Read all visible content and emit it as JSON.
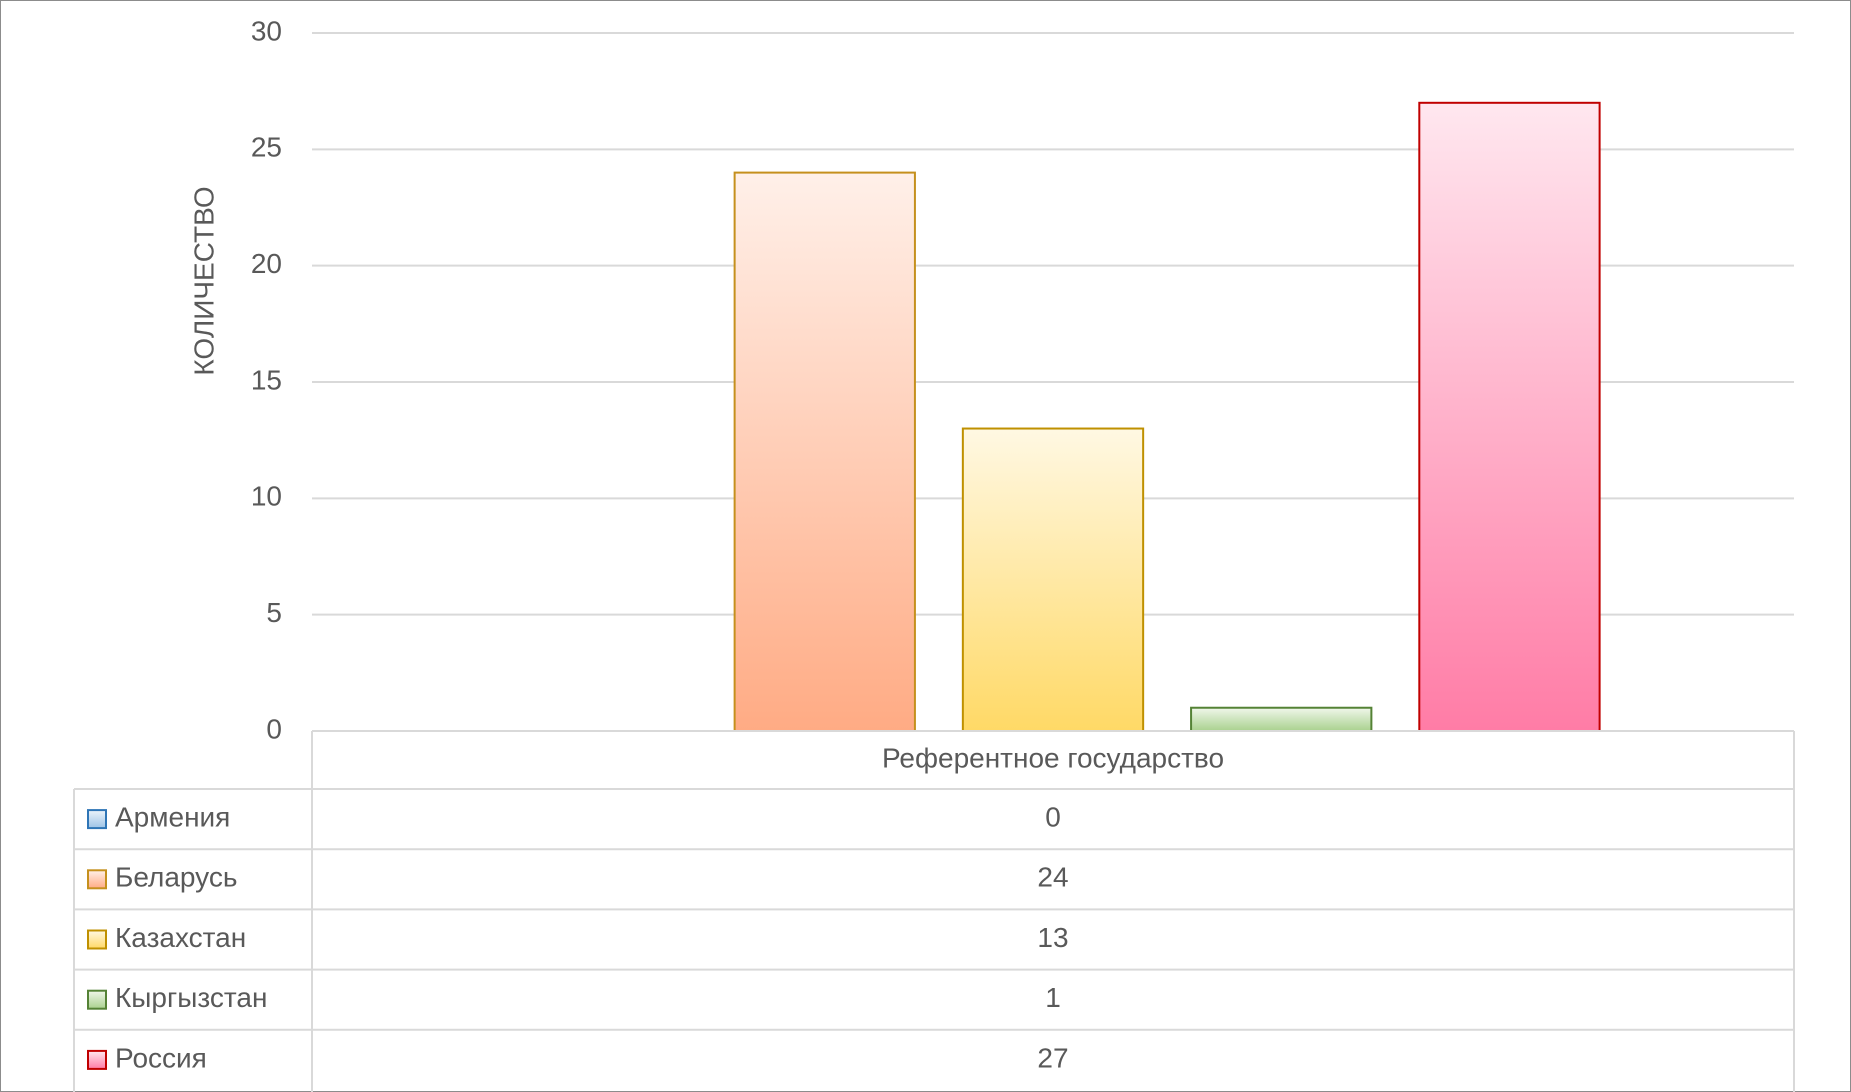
{
  "chart_data": {
    "type": "bar",
    "y_label": "КОЛИЧЕСТВО",
    "categories": [
      "Референтное государство"
    ],
    "series": [
      {
        "name": "Армения",
        "color": "#9dc3e6",
        "border_color": "#2e75b6",
        "values": [
          0
        ]
      },
      {
        "name": "Беларусь",
        "color": "#ffab84",
        "border_color": "#c5901d",
        "values": [
          24
        ]
      },
      {
        "name": "Казахстан",
        "color": "#ffd966",
        "border_color": "#bf9000",
        "values": [
          13
        ]
      },
      {
        "name": "Кыргызстан",
        "color": "#a9d18e",
        "border_color": "#548235",
        "values": [
          1
        ]
      },
      {
        "name": "Россия",
        "color": "#ff7ca6",
        "border_color": "#c00000",
        "values": [
          27
        ]
      }
    ],
    "ylim": [
      0,
      30
    ],
    "yticks": [
      0,
      5,
      10,
      15,
      20,
      25,
      30
    ],
    "grid": true,
    "data_table": true
  }
}
